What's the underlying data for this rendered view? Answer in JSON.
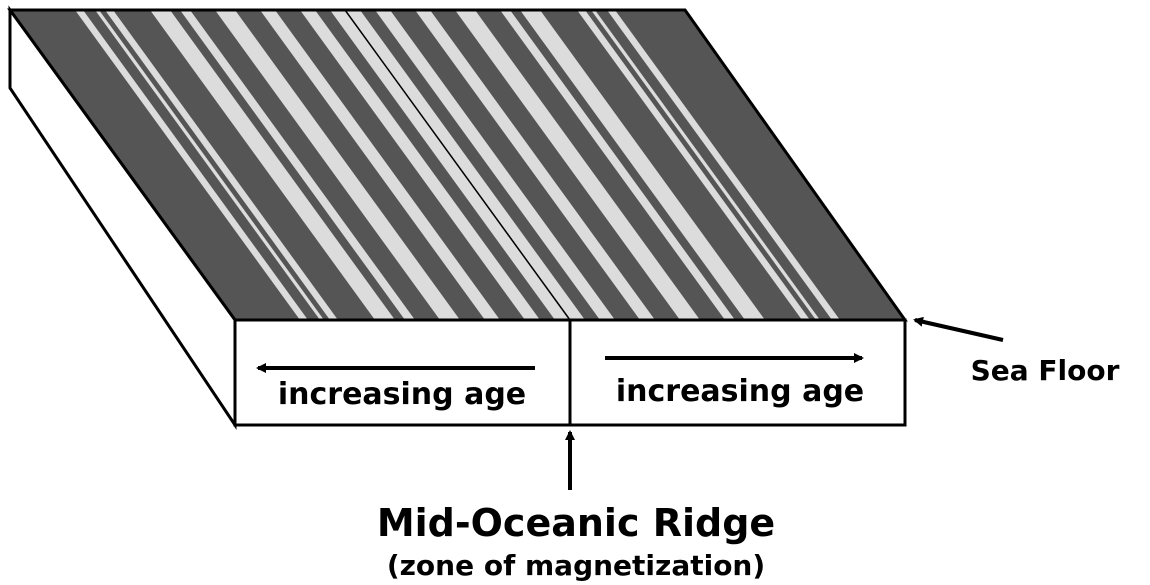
{
  "labels": {
    "left_face": "increasing age",
    "right_face": "increasing age",
    "sea_floor": "Sea Floor",
    "ridge": "Mid-Oceanic Ridge",
    "ridge_note": "(zone of magnetization)"
  }
}
